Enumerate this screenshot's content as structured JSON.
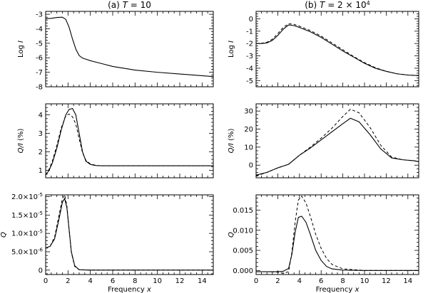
{
  "chart_data": [
    {
      "type": "line",
      "title": "(a) T = 10",
      "title_parts": {
        "prefix": "(a) ",
        "var": "T",
        "rest": " = 10"
      },
      "ylabel": "Log I",
      "ylabel_parts": {
        "text": "Log ",
        "var": "I"
      },
      "xlabel": "",
      "xlim": [
        0,
        15
      ],
      "ylim": [
        -8,
        -2.8
      ],
      "xticks": [
        0,
        2,
        4,
        6,
        8,
        10,
        12,
        14
      ],
      "xtick_labels": [
        "",
        "",
        "",
        "",
        "",
        "",
        "",
        ""
      ],
      "yticks": [
        -3,
        -4,
        -5,
        -6,
        -7,
        -8
      ],
      "ytick_labels": [
        "-3",
        "-4",
        "-5",
        "-6",
        "-7",
        "-8"
      ],
      "series": [
        {
          "style": "solid",
          "x": [
            0,
            0.5,
            1,
            1.5,
            1.8,
            2.1,
            2.4,
            2.7,
            3,
            3.3,
            3.6,
            4,
            5,
            6,
            8,
            10,
            12,
            15
          ],
          "y": [
            -3.3,
            -3.28,
            -3.22,
            -3.2,
            -3.35,
            -3.9,
            -4.7,
            -5.4,
            -5.85,
            -6.02,
            -6.1,
            -6.2,
            -6.4,
            -6.6,
            -6.85,
            -7.0,
            -7.12,
            -7.3
          ]
        }
      ]
    },
    {
      "type": "line",
      "title": "(b) T = 2 × 10^4",
      "title_parts": {
        "prefix": "(b) ",
        "var": "T",
        "rest": " = 2 × 10",
        "sup": "4"
      },
      "ylabel": "Log I",
      "ylabel_parts": {
        "text": "Log ",
        "var": "I"
      },
      "xlabel": "",
      "xlim": [
        0,
        15
      ],
      "ylim": [
        -5.5,
        0.6
      ],
      "xticks": [
        0,
        2,
        4,
        6,
        8,
        10,
        12,
        14
      ],
      "xtick_labels": [
        "",
        "",
        "",
        "",
        "",
        "",
        "",
        ""
      ],
      "yticks": [
        0,
        -1,
        -2,
        -3,
        -4,
        -5
      ],
      "ytick_labels": [
        "0",
        "-1",
        "-2",
        "-3",
        "-4",
        "-5"
      ],
      "series": [
        {
          "style": "solid",
          "x": [
            0,
            0.5,
            1,
            1.5,
            2,
            2.5,
            3,
            3.5,
            4,
            5,
            6,
            7,
            8,
            9,
            10,
            11,
            12,
            13,
            14,
            15
          ],
          "y": [
            -2.0,
            -2.0,
            -1.95,
            -1.75,
            -1.35,
            -0.85,
            -0.5,
            -0.55,
            -0.7,
            -1.05,
            -1.5,
            -2.05,
            -2.6,
            -3.1,
            -3.6,
            -4.0,
            -4.25,
            -4.45,
            -4.55,
            -4.6
          ]
        },
        {
          "style": "dashed",
          "x": [
            0,
            0.5,
            1,
            1.5,
            2,
            2.5,
            3,
            3.5,
            4,
            5,
            6,
            7,
            8,
            9,
            10,
            11,
            12,
            13,
            14,
            15
          ],
          "y": [
            -2.0,
            -1.98,
            -1.9,
            -1.65,
            -1.2,
            -0.7,
            -0.4,
            -0.45,
            -0.6,
            -0.95,
            -1.4,
            -1.95,
            -2.5,
            -3.05,
            -3.55,
            -3.95,
            -4.25,
            -4.45,
            -4.55,
            -4.6
          ]
        }
      ]
    },
    {
      "type": "line",
      "title": "",
      "ylabel": "Q/I (%)",
      "ylabel_parts": {
        "var": "Q/I",
        "text": " (%)"
      },
      "xlabel": "",
      "xlim": [
        0,
        15
      ],
      "ylim": [
        0.6,
        4.6
      ],
      "xticks": [
        0,
        2,
        4,
        6,
        8,
        10,
        12,
        14
      ],
      "xtick_labels": [
        "",
        "",
        "",
        "",
        "",
        "",
        "",
        ""
      ],
      "yticks": [
        1,
        2,
        3,
        4
      ],
      "ytick_labels": [
        "1",
        "2",
        "3",
        "4"
      ],
      "series": [
        {
          "style": "solid",
          "x": [
            0,
            0.3,
            0.6,
            1,
            1.4,
            1.8,
            2.1,
            2.4,
            2.7,
            3,
            3.3,
            3.6,
            4,
            4.5,
            5,
            6,
            8,
            10,
            15
          ],
          "y": [
            0.75,
            1.0,
            1.4,
            2.2,
            3.2,
            4.0,
            4.3,
            4.35,
            4.0,
            3.0,
            2.0,
            1.5,
            1.32,
            1.26,
            1.25,
            1.25,
            1.25,
            1.25,
            1.25
          ]
        },
        {
          "style": "dashed",
          "x": [
            0,
            0.3,
            0.6,
            1,
            1.4,
            1.8,
            2.1,
            2.4,
            2.7,
            3,
            3.3,
            3.6,
            4,
            4.5,
            5,
            6,
            8,
            10,
            15
          ],
          "y": [
            0.75,
            1.05,
            1.5,
            2.35,
            3.3,
            3.95,
            4.05,
            3.9,
            3.5,
            2.7,
            1.95,
            1.55,
            1.35,
            1.27,
            1.25,
            1.25,
            1.25,
            1.25,
            1.25
          ]
        }
      ]
    },
    {
      "type": "line",
      "title": "",
      "ylabel": "Q/I (%)",
      "ylabel_parts": {
        "var": "Q/I",
        "text": " (%)"
      },
      "xlabel": "",
      "xlim": [
        0,
        15
      ],
      "ylim": [
        -7,
        34
      ],
      "xticks": [
        0,
        2,
        4,
        6,
        8,
        10,
        12,
        14
      ],
      "xtick_labels": [
        "",
        "",
        "",
        "",
        "",
        "",
        "",
        ""
      ],
      "yticks": [
        0,
        10,
        20,
        30
      ],
      "ytick_labels": [
        "0",
        "10",
        "20",
        "30"
      ],
      "series": [
        {
          "style": "solid",
          "x": [
            0,
            1,
            2,
            2.5,
            3,
            4,
            5,
            6,
            7,
            8,
            8.7,
            9.5,
            10.5,
            11.5,
            12.5,
            13.5,
            14.5,
            15
          ],
          "y": [
            -5.5,
            -4.0,
            -1.5,
            -0.5,
            0.5,
            5.5,
            9.5,
            14.0,
            18.5,
            23.0,
            26.0,
            24.0,
            17.0,
            9.0,
            4.0,
            3.0,
            2.5,
            2.0
          ]
        },
        {
          "style": "dashed",
          "x": [
            0,
            1,
            2,
            2.5,
            3,
            4,
            5,
            6,
            7,
            8,
            8.7,
            9.5,
            10.5,
            11.5,
            12.5,
            13.5,
            14.5,
            15
          ],
          "y": [
            -6.0,
            -4.0,
            -1.5,
            -0.5,
            0.5,
            5.5,
            10.0,
            15.0,
            20.5,
            27.0,
            31.0,
            29.0,
            21.0,
            11.0,
            4.5,
            3.0,
            2.5,
            2.0
          ]
        }
      ]
    },
    {
      "type": "line",
      "title": "",
      "ylabel": "Q",
      "ylabel_parts": {
        "var": "Q",
        "text": ""
      },
      "xlabel": "Frequency x",
      "xlabel_parts": {
        "text": "Frequency ",
        "var": "x"
      },
      "xlim": [
        0,
        15
      ],
      "ylim": [
        -1.2e-06,
        2.05e-05
      ],
      "xticks": [
        0,
        2,
        4,
        6,
        8,
        10,
        12,
        14
      ],
      "xtick_labels": [
        "0",
        "2",
        "4",
        "6",
        "8",
        "10",
        "12",
        "14"
      ],
      "yticks": [
        0,
        5e-06,
        1e-05,
        1.5e-05,
        2e-05
      ],
      "ytick_labels": [
        {
          "base": "0",
          "exp": ""
        },
        {
          "base": "5.0×10",
          "exp": "-6"
        },
        {
          "base": "1.0×10",
          "exp": "-5"
        },
        {
          "base": "1.5×10",
          "exp": "-5"
        },
        {
          "base": "2.0×10",
          "exp": "-5"
        }
      ],
      "series": [
        {
          "style": "solid",
          "x": [
            0,
            0.4,
            0.8,
            1.2,
            1.5,
            1.7,
            1.9,
            2.1,
            2.3,
            2.6,
            3,
            4,
            15
          ],
          "y": [
            6e-06,
            6.5e-06,
            8.5e-06,
            1.4e-05,
            1.85e-05,
            1.95e-05,
            1.7e-05,
            1.1e-05,
            5e-06,
            1.2e-06,
            1e-07,
            0,
            0
          ]
        },
        {
          "style": "dashed",
          "x": [
            0,
            0.4,
            0.8,
            1.2,
            1.5,
            1.7,
            1.9,
            2.1,
            2.3,
            2.6,
            3,
            4,
            15
          ],
          "y": [
            6e-06,
            6.5e-06,
            9e-06,
            1.5e-05,
            1.95e-05,
            2.05e-05,
            1.75e-05,
            1.1e-05,
            4.8e-06,
            1e-06,
            1e-07,
            0,
            0
          ]
        }
      ]
    },
    {
      "type": "line",
      "title": "",
      "ylabel": "Q",
      "ylabel_parts": {
        "var": "Q",
        "text": ""
      },
      "xlabel": "Frequency x",
      "xlabel_parts": {
        "text": "Frequency ",
        "var": "x"
      },
      "xlim": [
        0,
        15
      ],
      "ylim": [
        -0.001,
        0.0188
      ],
      "xticks": [
        0,
        2,
        4,
        6,
        8,
        10,
        12,
        14
      ],
      "xtick_labels": [
        "0",
        "2",
        "4",
        "6",
        "8",
        "10",
        "12",
        "14"
      ],
      "yticks": [
        0,
        0.005,
        0.01,
        0.015
      ],
      "ytick_labels": [
        "0.000",
        "0.005",
        "0.010",
        "0.015"
      ],
      "series": [
        {
          "style": "solid",
          "x": [
            0,
            1,
            2,
            2.5,
            3,
            3.3,
            3.6,
            3.9,
            4.2,
            4.6,
            5,
            5.5,
            6,
            6.5,
            7,
            8,
            10,
            15
          ],
          "y": [
            -0.0003,
            -0.0003,
            -0.0003,
            -0.0002,
            0.0005,
            0.004,
            0.0095,
            0.0132,
            0.0135,
            0.012,
            0.009,
            0.005,
            0.0025,
            0.001,
            0.0004,
            0.0001,
            0,
            0
          ]
        },
        {
          "style": "dashed",
          "x": [
            0,
            1,
            2,
            2.5,
            3,
            3.3,
            3.6,
            3.9,
            4.2,
            4.6,
            5,
            5.5,
            6,
            6.5,
            7,
            8,
            10,
            15
          ],
          "y": [
            -0.0003,
            -0.0003,
            -0.0004,
            -0.0007,
            -0.0003,
            0.0045,
            0.012,
            0.0175,
            0.0185,
            0.0168,
            0.0135,
            0.009,
            0.0055,
            0.003,
            0.0015,
            0.0004,
            0,
            0
          ]
        }
      ]
    }
  ]
}
